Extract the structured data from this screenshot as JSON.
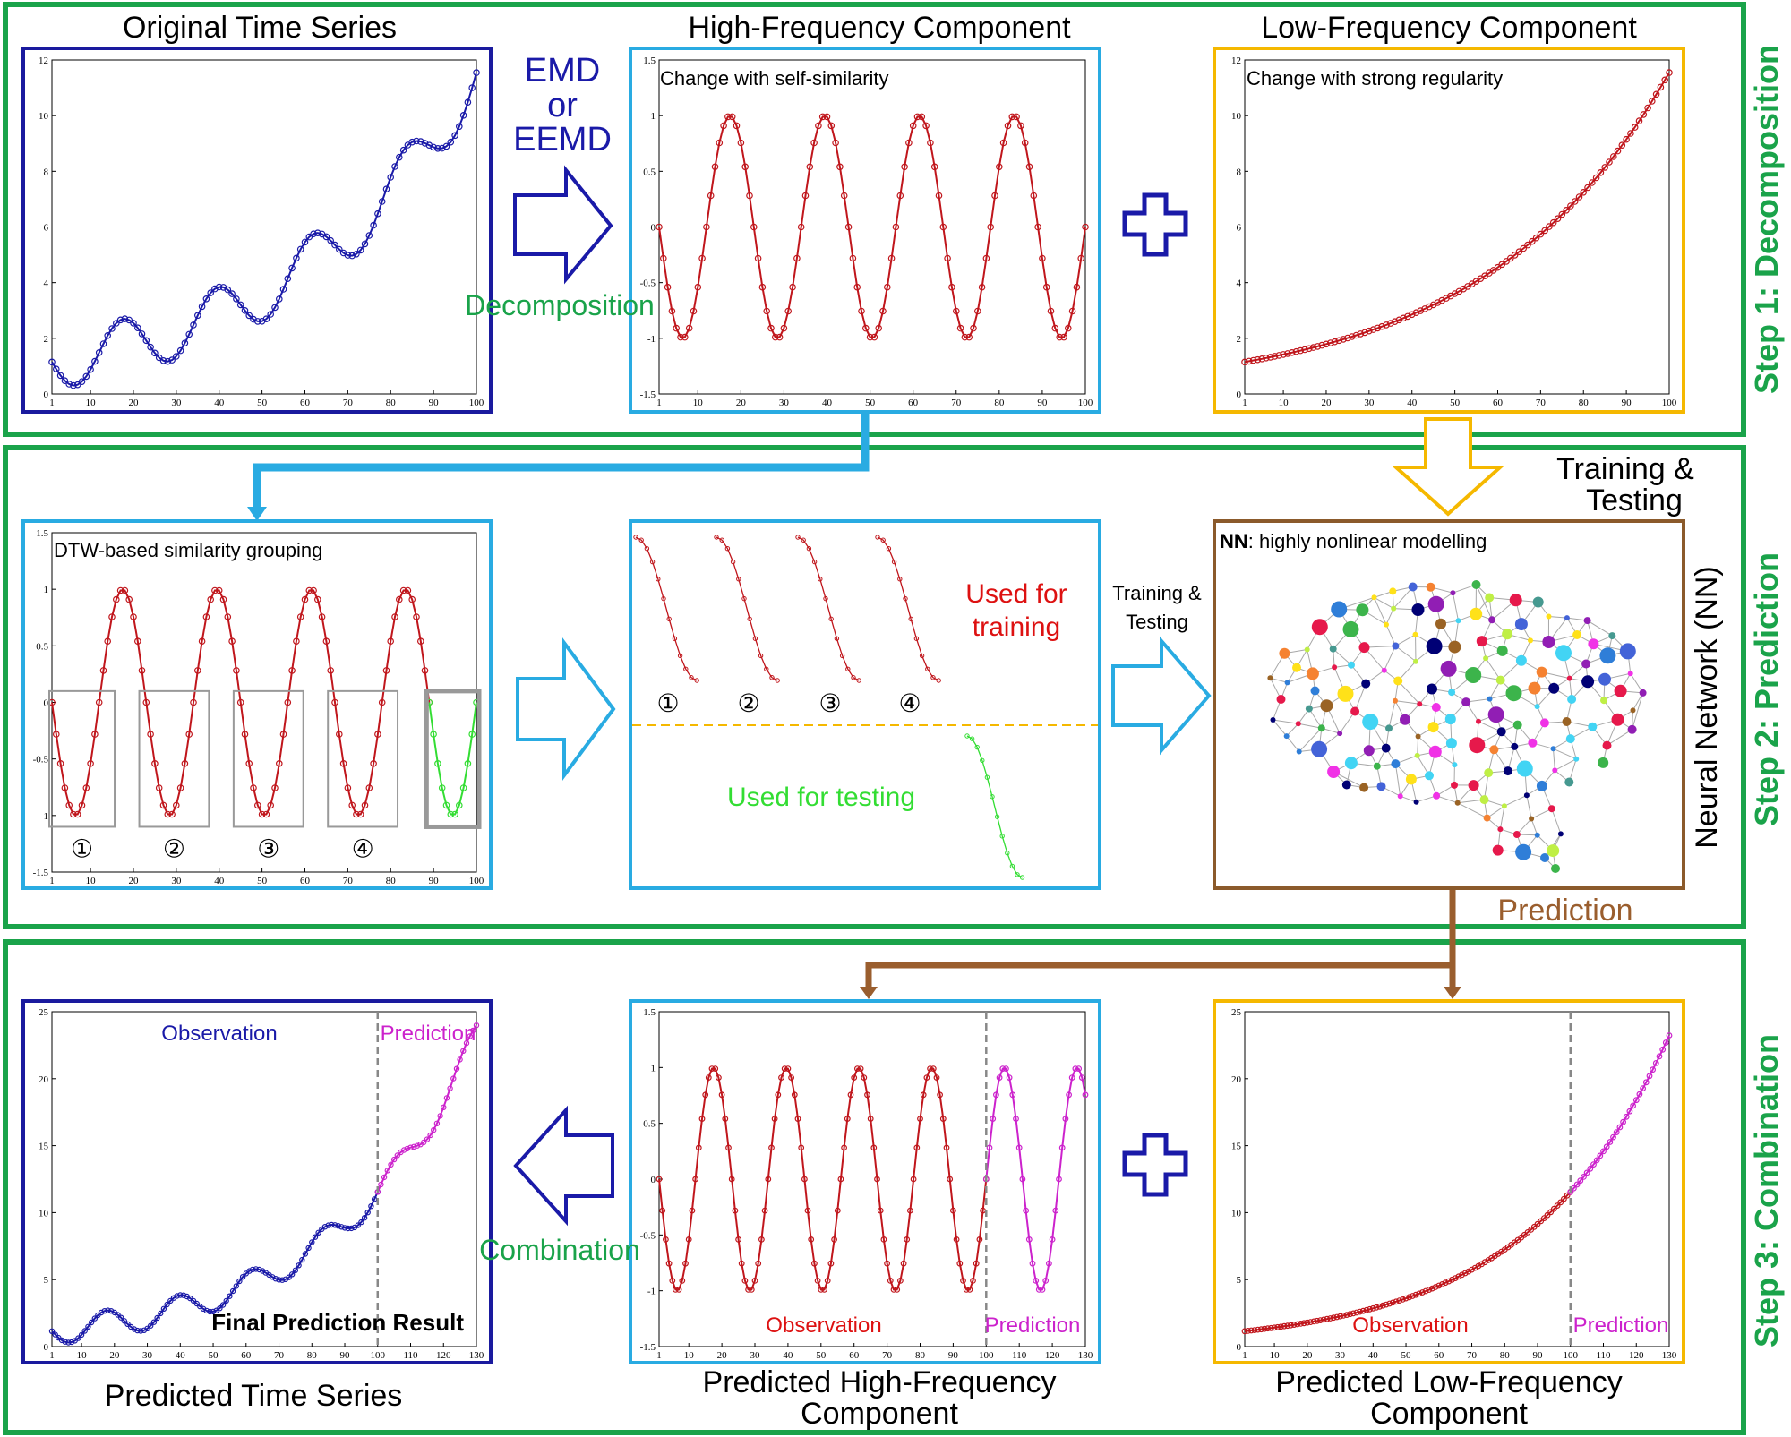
{
  "steps": {
    "step1": "Step 1: Decomposition",
    "step2": "Step 2: Prediction",
    "step3": "Step 3: Combination"
  },
  "titles": {
    "original": "Original Time Series",
    "high": "High-Frequency Component",
    "low": "Low-Frequency Component",
    "predicted_series": "Predicted Time Series",
    "predicted_high_1": "Predicted High-Frequency",
    "predicted_high_2": "Component",
    "predicted_low_1": "Predicted Low-Frequency",
    "predicted_low_2": "Component"
  },
  "arrows": {
    "emd_1": "EMD",
    "emd_2": "or",
    "emd_3": "EEMD",
    "decomposition": "Decomposition",
    "combination": "Combination",
    "training_testing_1": "Training &",
    "training_testing_2": "Testing",
    "training_testing_top_1": "Training &",
    "training_testing_top_2": "Testing",
    "prediction": "Prediction"
  },
  "annotations": {
    "self_similarity": "Change with self-similarity",
    "strong_regularity": "Change with strong regularity",
    "dtw": "DTW-based similarity grouping",
    "used_training_1": "Used for",
    "used_training_2": "training",
    "used_testing": "Used for testing",
    "nn_bold": "NN",
    "nn_rest": ": highly nonlinear modelling",
    "nn_side": "Neural Network (NN)",
    "observation": "Observation",
    "prediction": "Prediction",
    "final_result": "Final Prediction Result"
  },
  "group_numbers": [
    "①",
    "②",
    "③",
    "④"
  ],
  "colors": {
    "step_border": "#1aa34a",
    "original_frame": "#1a1a9e",
    "high_frame": "#29abe2",
    "low_frame": "#f5b800",
    "nn_frame": "#8b5a2b",
    "series_blue": "#1a1aa8",
    "series_red": "#c0161c",
    "series_green": "#33dd33",
    "series_magenta": "#cc22cc",
    "arrow_cyan": "#29abe2",
    "arrow_brown": "#9a5e2e",
    "arrow_yellow": "#f5b800",
    "text_green": "#1aa34a",
    "text_red": "#dd1111",
    "text_lime": "#33dd33"
  },
  "chart_data": [
    {
      "id": "original",
      "type": "line",
      "x_range": [
        1,
        100
      ],
      "ylim": [
        0,
        12
      ],
      "xticks": [
        "1",
        "10",
        "20",
        "30",
        "40",
        "50",
        "60",
        "70",
        "80",
        "90",
        "100"
      ],
      "yticks": [
        "0",
        "2",
        "4",
        "6",
        "8",
        "10",
        "12"
      ],
      "series": [
        {
          "function": "1.15*e^(0.0233*(x-1)) + 1.0*sin(2*pi*(x-1)/22 + pi)",
          "x": [
            1,
            100
          ]
        }
      ]
    },
    {
      "id": "high_frequency",
      "type": "line",
      "x_range": [
        1,
        100
      ],
      "ylim": [
        -1.5,
        1.5
      ],
      "xticks": [
        "1",
        "10",
        "20",
        "30",
        "40",
        "50",
        "60",
        "70",
        "80",
        "90",
        "100"
      ],
      "yticks": [
        "-1.5",
        "-1",
        "-0.5",
        "0",
        "0.5",
        "1",
        "1.5"
      ],
      "series": [
        {
          "function": "sin(2*pi*(x-1)/22 + pi)",
          "x": [
            1,
            100
          ]
        }
      ]
    },
    {
      "id": "low_frequency",
      "type": "line",
      "x_range": [
        1,
        100
      ],
      "ylim": [
        0,
        12
      ],
      "xticks": [
        "1",
        "10",
        "20",
        "30",
        "40",
        "50",
        "60",
        "70",
        "80",
        "90",
        "100"
      ],
      "yticks": [
        "0",
        "2",
        "4",
        "6",
        "8",
        "10",
        "12"
      ],
      "series": [
        {
          "function": "1.15*e^(0.0233*(x-1))",
          "x": [
            1,
            100
          ]
        }
      ]
    },
    {
      "id": "dtw_grouping",
      "type": "line",
      "x_range": [
        1,
        100
      ],
      "ylim": [
        -1.5,
        1.5
      ],
      "xticks": [
        "1",
        "10",
        "20",
        "30",
        "40",
        "50",
        "60",
        "70",
        "80",
        "90",
        "100"
      ],
      "yticks": [
        "-1.5",
        "-1",
        "-0.5",
        "0",
        "0.5",
        "1",
        "1.5"
      ],
      "series": [
        {
          "function": "sin(2*pi*(x-1)/22 + pi)",
          "x": [
            1,
            100
          ]
        }
      ]
    },
    {
      "id": "predicted_series",
      "type": "line",
      "x_range": [
        1,
        130
      ],
      "ylim": [
        0,
        25
      ],
      "xticks": [
        "1",
        "10",
        "20",
        "30",
        "40",
        "50",
        "60",
        "70",
        "80",
        "90",
        "100",
        "110",
        "120",
        "130"
      ],
      "yticks": [
        "0",
        "5",
        "10",
        "15",
        "20",
        "25"
      ],
      "series": [
        {
          "name": "Observation",
          "function": "1.15*e^(0.0233*(x-1)) + 1.0*sin(2*pi*(x-1)/22 + pi)",
          "x": [
            1,
            100
          ]
        },
        {
          "name": "Prediction",
          "function": "1.15*e^(0.0233*(x-1)) + 1.0*sin(2*pi*(x-1)/22 + pi)",
          "x": [
            100,
            130
          ]
        }
      ],
      "divider_x": 100
    },
    {
      "id": "predicted_high",
      "type": "line",
      "x_range": [
        1,
        130
      ],
      "ylim": [
        -1.5,
        1.5
      ],
      "xticks": [
        "1",
        "10",
        "20",
        "30",
        "40",
        "50",
        "60",
        "70",
        "80",
        "90",
        "100",
        "110",
        "120",
        "130"
      ],
      "yticks": [
        "-1.5",
        "-1",
        "-0.5",
        "0",
        "0.5",
        "1",
        "1.5"
      ],
      "series": [
        {
          "name": "Observation",
          "function": "sin(2*pi*(x-1)/22 + pi)",
          "x": [
            1,
            100
          ]
        },
        {
          "name": "Prediction",
          "function": "sin(2*pi*(x-1)/22 + pi)",
          "x": [
            100,
            130
          ]
        }
      ],
      "divider_x": 100
    },
    {
      "id": "predicted_low",
      "type": "line",
      "x_range": [
        1,
        130
      ],
      "ylim": [
        0,
        25
      ],
      "xticks": [
        "1",
        "10",
        "20",
        "30",
        "40",
        "50",
        "60",
        "70",
        "80",
        "90",
        "100",
        "110",
        "120",
        "130"
      ],
      "yticks": [
        "0",
        "5",
        "10",
        "15",
        "20",
        "25"
      ],
      "series": [
        {
          "name": "Observation",
          "function": "1.15*e^(0.0233*(x-1))",
          "x": [
            1,
            100
          ]
        },
        {
          "name": "Prediction",
          "function": "1.15*e^(0.0233*(x-1))",
          "x": [
            100,
            130
          ]
        }
      ],
      "divider_x": 100
    }
  ]
}
